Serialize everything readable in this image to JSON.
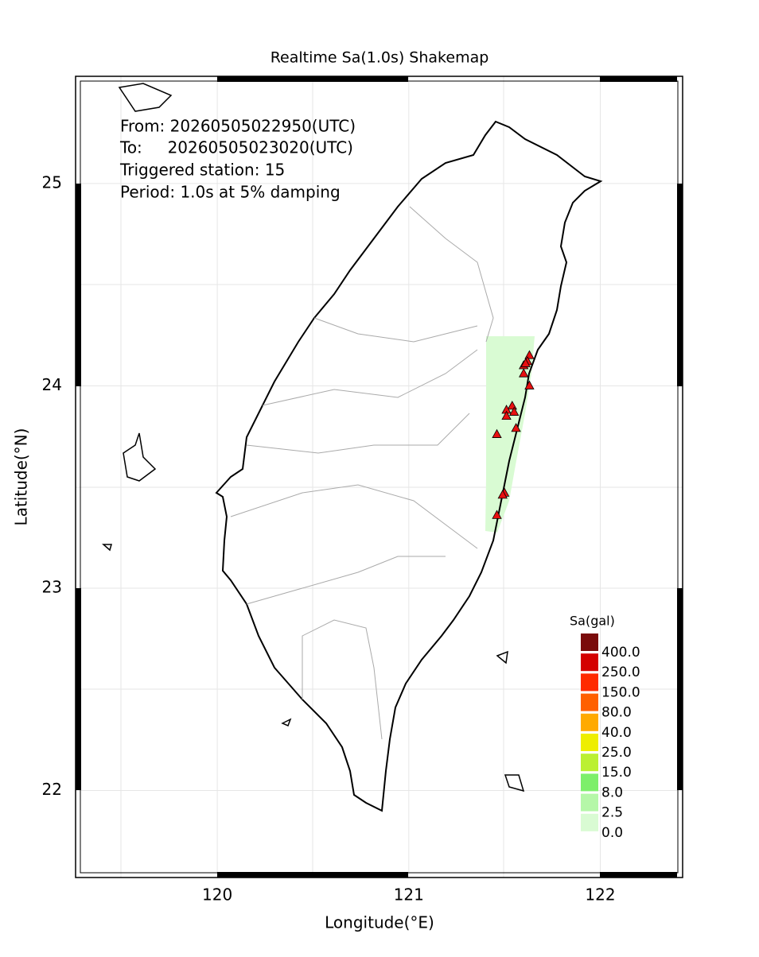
{
  "map": {
    "title": "Realtime Sa(1.0s) Shakemap",
    "info": [
      "From: 20260505022950(UTC)",
      "To:     20260505023020(UTC)",
      "Triggered station: 15",
      "Period: 1.0s at 5% damping"
    ],
    "xlabel": "Longitude(°E)",
    "ylabel": "Latitude(°N)",
    "xlim": [
      119.26,
      122.43
    ],
    "ylim": [
      21.57,
      25.53
    ],
    "xticks": [
      120,
      121,
      122
    ],
    "yticks": [
      22,
      23,
      24,
      25
    ],
    "stations": {
      "lon": [
        121.63,
        121.62,
        121.6,
        121.6,
        121.63,
        121.54,
        121.51,
        121.55,
        121.51,
        121.56,
        121.46,
        121.5,
        121.49,
        121.46,
        121.61
      ],
      "lat": [
        24.15,
        24.12,
        24.1,
        24.06,
        24.0,
        23.9,
        23.88,
        23.87,
        23.85,
        23.79,
        23.76,
        23.47,
        23.46,
        23.36,
        24.11
      ]
    },
    "legend": {
      "title": "Sa(gal)",
      "levels": [
        {
          "label": "400.0",
          "color": "#7a0b0b"
        },
        {
          "label": "250.0",
          "color": "#d40000"
        },
        {
          "label": "150.0",
          "color": "#ff2a00"
        },
        {
          "label": "80.0",
          "color": "#ff6000"
        },
        {
          "label": "40.0",
          "color": "#ffaa00"
        },
        {
          "label": "25.0",
          "color": "#eeee00"
        },
        {
          "label": "15.0",
          "color": "#bbf032"
        },
        {
          "label": "8.0",
          "color": "#7def6a"
        },
        {
          "label": "2.5",
          "color": "#b5f7a8"
        },
        {
          "label": "0.0",
          "color": "#d9fbd3"
        }
      ]
    }
  }
}
